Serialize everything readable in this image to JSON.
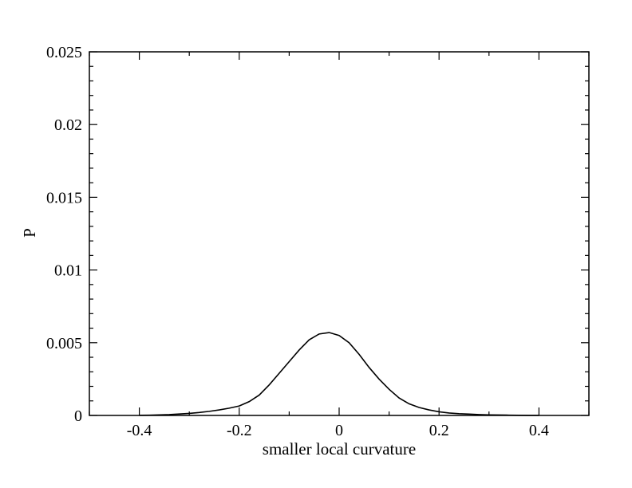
{
  "chart_data": {
    "type": "line",
    "title": "",
    "xlabel": "smaller local curvature",
    "ylabel": "P",
    "xlim": [
      -0.5,
      0.5
    ],
    "ylim": [
      0,
      0.025
    ],
    "grid": false,
    "legend": "none",
    "x_ticks": [
      -0.4,
      -0.2,
      0,
      0.2,
      0.4
    ],
    "x_tick_labels": [
      "-0.4",
      "-0.2",
      "0",
      "0.2",
      "0.4"
    ],
    "y_ticks": [
      0,
      0.005,
      0.01,
      0.015,
      0.02,
      0.025
    ],
    "y_tick_labels": [
      "0",
      "0.005",
      "0.01",
      "0.015",
      "0.02",
      "0.025"
    ],
    "line_color": "#000000",
    "series": [
      {
        "x": [
          -0.4,
          -0.38,
          -0.36,
          -0.34,
          -0.32,
          -0.3,
          -0.28,
          -0.26,
          -0.24,
          -0.22,
          -0.2,
          -0.18,
          -0.16,
          -0.14,
          -0.12,
          -0.1,
          -0.08,
          -0.06,
          -0.04,
          -0.02,
          0.0,
          0.02,
          0.04,
          0.06,
          0.08,
          0.1,
          0.12,
          0.14,
          0.16,
          0.18,
          0.2,
          0.22,
          0.24,
          0.26,
          0.28,
          0.3,
          0.32,
          0.34,
          0.36,
          0.38,
          0.4
        ],
        "y": [
          1e-05,
          2e-05,
          4e-05,
          6e-05,
          0.0001,
          0.00014,
          0.0002,
          0.00028,
          0.00038,
          0.0005,
          0.00065,
          0.00095,
          0.0014,
          0.0021,
          0.0029,
          0.0037,
          0.0045,
          0.0052,
          0.0056,
          0.0057,
          0.0055,
          0.005,
          0.0042,
          0.0033,
          0.0025,
          0.0018,
          0.0012,
          0.0008,
          0.00055,
          0.00038,
          0.00025,
          0.00017,
          0.00012,
          9e-05,
          6e-05,
          4e-05,
          3e-05,
          2e-05,
          1e-05,
          5e-06,
          2e-06
        ]
      }
    ]
  }
}
